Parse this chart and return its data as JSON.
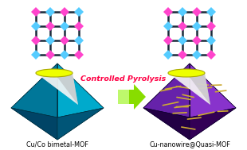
{
  "bg_color": "#ffffff",
  "left_label": "Cu/Co bimetal-MOF",
  "right_label": "Cu-nanowire@Quasi-MOF",
  "center_text": "Controlled Pyrolysis",
  "center_text_color": "#ff0044",
  "arrow_color_tip": "#88dd00",
  "arrow_color_tail": "#ccff88",
  "grid_color_dark": "#1a2a3a",
  "node_pink": "#ff44cc",
  "node_cyan": "#55ccff",
  "left_oct_top": "#55ddee",
  "left_oct_left": "#007799",
  "left_oct_right": "#009ab5",
  "left_oct_bot_left": "#005577",
  "left_oct_bot_right": "#006688",
  "left_oct_bottom": "#003355",
  "right_oct_top": "#cc99ee",
  "right_oct_left": "#6622aa",
  "right_oct_right": "#8833cc",
  "right_oct_bot_left": "#220033",
  "right_oct_bot_right": "#330055",
  "right_oct_bottom": "#110022",
  "cone_yellow": "#eeff00",
  "cone_white": "#f5f5f5",
  "cone_shadow": "#aaaaaa",
  "nanowire_color": "#ccaa33"
}
